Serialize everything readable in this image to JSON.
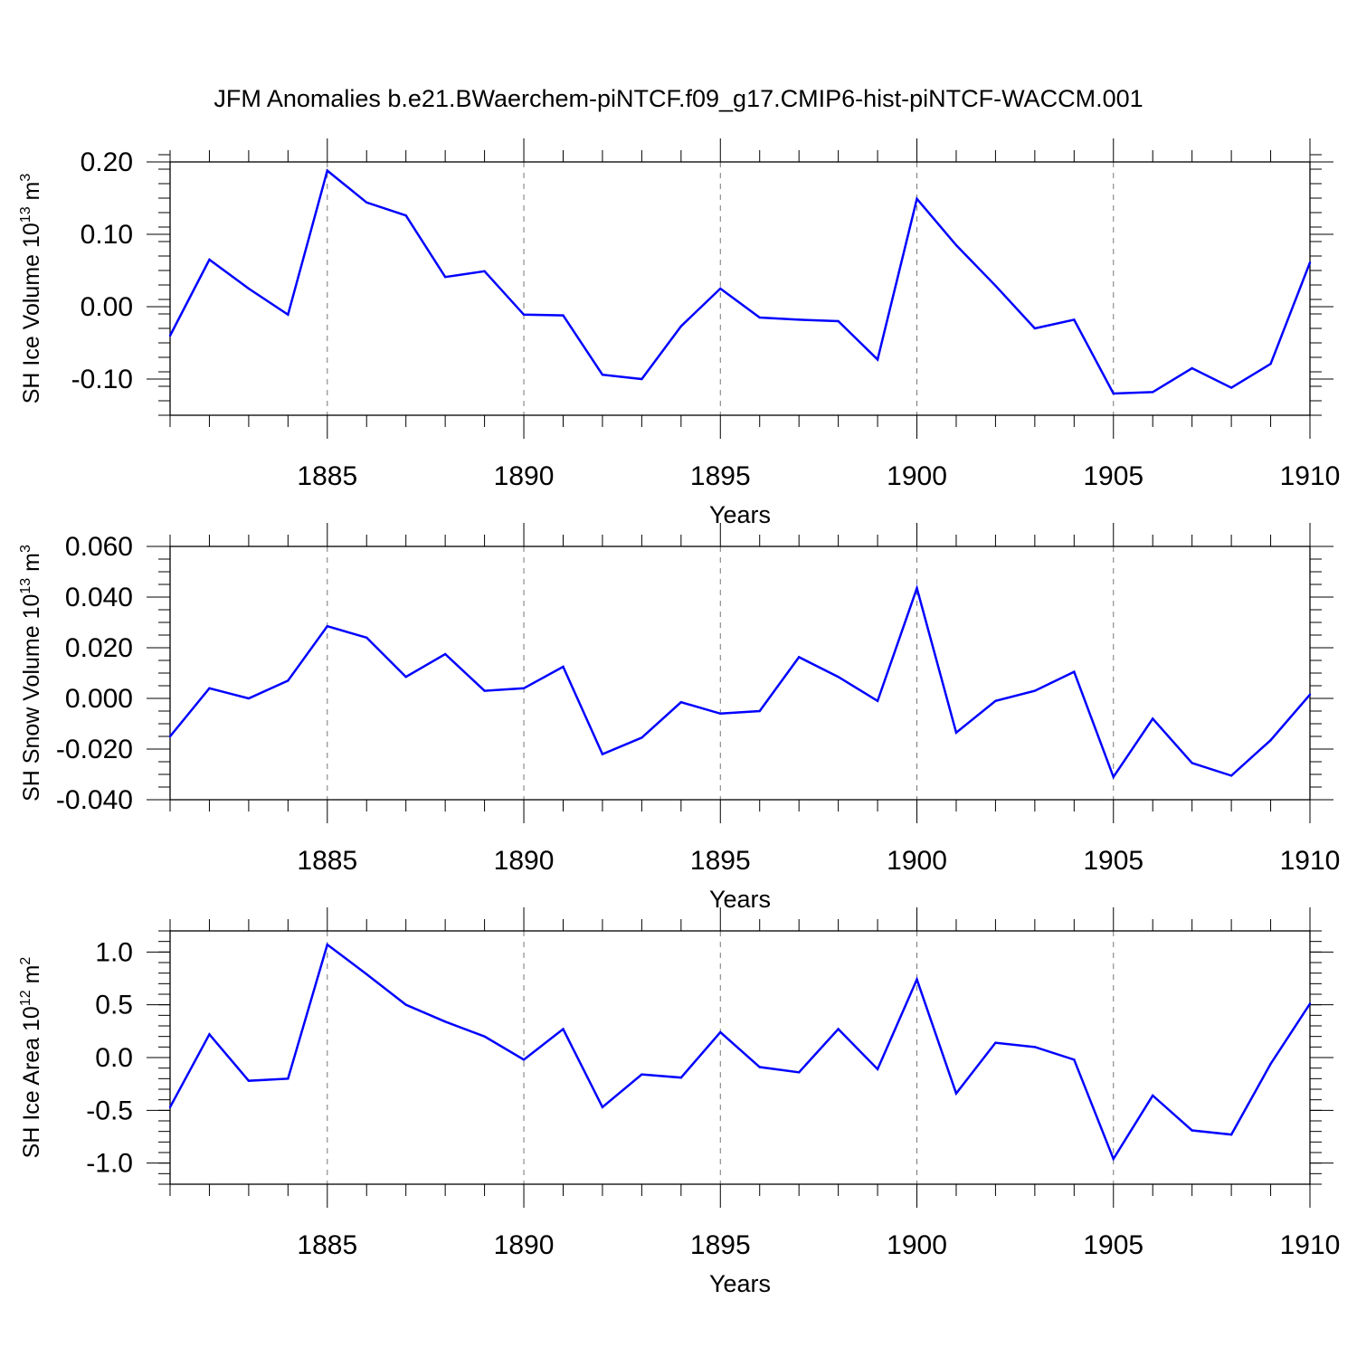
{
  "title": "JFM Anomalies b.e21.BWaerchem-piNTCF.f09_g17.CMIP6-hist-piNTCF-WACCM.001",
  "series_color": "#0000ff",
  "chart_data": [
    {
      "type": "line",
      "title": "JFM Anomalies b.e21.BWaerchem-piNTCF.f09_g17.CMIP6-hist-piNTCF-WACCM.001",
      "xlabel": "Years",
      "ylabel": {
        "base": "SH Ice Volume 10",
        "exp": "13",
        "unit": " m",
        "unit_exp": "3"
      },
      "x": [
        1881,
        1882,
        1883,
        1884,
        1885,
        1886,
        1887,
        1888,
        1889,
        1890,
        1891,
        1892,
        1893,
        1894,
        1895,
        1896,
        1897,
        1898,
        1899,
        1900,
        1901,
        1902,
        1903,
        1904,
        1905,
        1906,
        1907,
        1908,
        1909,
        1910
      ],
      "values": [
        -0.04,
        0.065,
        0.025,
        -0.011,
        0.188,
        0.144,
        0.126,
        0.041,
        0.049,
        -0.011,
        -0.012,
        -0.094,
        -0.1,
        -0.027,
        0.025,
        -0.015,
        -0.018,
        -0.02,
        -0.073,
        0.149,
        0.085,
        0.029,
        -0.03,
        -0.018,
        -0.12,
        -0.118,
        -0.085,
        -0.112,
        -0.079,
        0.061
      ],
      "xlim": [
        1881,
        1910
      ],
      "ylim": [
        -0.15,
        0.2
      ],
      "yticks": [
        -0.1,
        0.0,
        0.1,
        0.2
      ],
      "ytick_labels": [
        "-0.10",
        "0.00",
        "0.10",
        "0.20"
      ],
      "yminor_step": 0.02,
      "xticks": [
        1885,
        1890,
        1895,
        1900,
        1905,
        1910
      ],
      "xtick_labels": [
        "1885",
        "1890",
        "1895",
        "1900",
        "1905",
        "1910"
      ],
      "grid": "vertical dashed at major x ticks"
    },
    {
      "type": "line",
      "xlabel": "Years",
      "ylabel": {
        "base": "SH Snow Volume 10",
        "exp": "13",
        "unit": " m",
        "unit_exp": "3"
      },
      "x": [
        1881,
        1882,
        1883,
        1884,
        1885,
        1886,
        1887,
        1888,
        1889,
        1890,
        1891,
        1892,
        1893,
        1894,
        1895,
        1896,
        1897,
        1898,
        1899,
        1900,
        1901,
        1902,
        1903,
        1904,
        1905,
        1906,
        1907,
        1908,
        1909,
        1910
      ],
      "values": [
        -0.015,
        0.004,
        0.0,
        0.007,
        0.0285,
        0.024,
        0.0085,
        0.0175,
        0.003,
        0.004,
        0.0125,
        -0.022,
        -0.0155,
        -0.0015,
        -0.006,
        -0.005,
        0.0163,
        0.0085,
        -0.001,
        0.0435,
        -0.0135,
        -0.001,
        0.003,
        0.0105,
        -0.031,
        -0.008,
        -0.0255,
        -0.0305,
        -0.0165,
        0.0015
      ],
      "xlim": [
        1881,
        1910
      ],
      "ylim": [
        -0.04,
        0.06
      ],
      "yticks": [
        -0.04,
        -0.02,
        0.0,
        0.02,
        0.04,
        0.06
      ],
      "ytick_labels": [
        "-0.040",
        "-0.020",
        "0.000",
        "0.020",
        "0.040",
        "0.060"
      ],
      "yminor_step": 0.005,
      "xticks": [
        1885,
        1890,
        1895,
        1900,
        1905,
        1910
      ],
      "xtick_labels": [
        "1885",
        "1890",
        "1895",
        "1900",
        "1905",
        "1910"
      ],
      "grid": "vertical dashed at major x ticks"
    },
    {
      "type": "line",
      "xlabel": "Years",
      "ylabel": {
        "base": "SH Ice Area 10",
        "exp": "12",
        "unit": " m",
        "unit_exp": "2"
      },
      "x": [
        1881,
        1882,
        1883,
        1884,
        1885,
        1886,
        1887,
        1888,
        1889,
        1890,
        1891,
        1892,
        1893,
        1894,
        1895,
        1896,
        1897,
        1898,
        1899,
        1900,
        1901,
        1902,
        1903,
        1904,
        1905,
        1906,
        1907,
        1908,
        1909,
        1910
      ],
      "values": [
        -0.47,
        0.22,
        -0.22,
        -0.2,
        1.07,
        0.79,
        0.5,
        0.34,
        0.2,
        -0.02,
        0.27,
        -0.47,
        -0.16,
        -0.19,
        0.24,
        -0.09,
        -0.14,
        0.27,
        -0.11,
        0.74,
        -0.34,
        0.14,
        0.1,
        -0.02,
        -0.96,
        -0.36,
        -0.69,
        -0.73,
        -0.06,
        0.51
      ],
      "xlim": [
        1881,
        1910
      ],
      "ylim": [
        -1.2,
        1.2
      ],
      "yticks": [
        -1.0,
        -0.5,
        0.0,
        0.5,
        1.0
      ],
      "ytick_labels": [
        "-1.0",
        "-0.5",
        "0.0",
        "0.5",
        "1.0"
      ],
      "yminor_step": 0.1,
      "xticks": [
        1885,
        1890,
        1895,
        1900,
        1905,
        1910
      ],
      "xtick_labels": [
        "1885",
        "1890",
        "1895",
        "1900",
        "1905",
        "1910"
      ],
      "grid": "vertical dashed at major x ticks"
    }
  ]
}
